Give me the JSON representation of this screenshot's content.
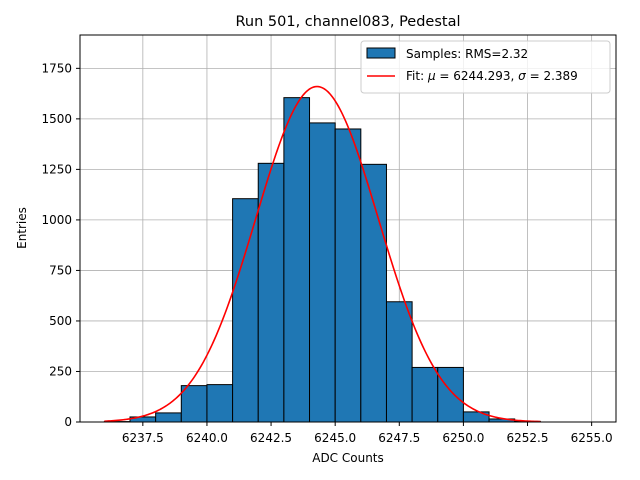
{
  "chart_data": {
    "type": "bar",
    "title": "Run 501, channel083, Pedestal",
    "xlabel": "ADC Counts",
    "ylabel": "Entries",
    "xlim": [
      6235.05,
      6255.95
    ],
    "ylim": [
      0,
      1915
    ],
    "grid": true,
    "legend_position": "top-right",
    "x_ticks": [
      6237.5,
      6240.0,
      6242.5,
      6245.0,
      6247.5,
      6250.0,
      6252.5,
      6255.0
    ],
    "x_tick_labels": [
      "6237.5",
      "6240.0",
      "6242.5",
      "6245.0",
      "6247.5",
      "6250.0",
      "6252.5",
      "6255.0"
    ],
    "y_ticks": [
      0,
      250,
      500,
      750,
      1000,
      1250,
      1500,
      1750
    ],
    "y_tick_labels": [
      "0",
      "250",
      "500",
      "750",
      "1000",
      "1250",
      "1500",
      "1750"
    ],
    "bin_edges": [
      6236,
      6237,
      6238,
      6239,
      6240,
      6241,
      6242,
      6243,
      6244,
      6245,
      6246,
      6247,
      6248,
      6249,
      6250,
      6251,
      6252,
      6253,
      6254,
      6255
    ],
    "series": [
      {
        "name": "Samples: RMS=2.32",
        "kind": "histogram",
        "color": "#1f77b4",
        "edge_color": "#000000",
        "values": [
          2,
          25,
          45,
          180,
          185,
          1105,
          1280,
          1605,
          1480,
          1450,
          1275,
          595,
          270,
          270,
          50,
          15,
          3,
          0,
          0
        ]
      },
      {
        "name_prefix": "Fit: ",
        "name_mu_symbol": "μ",
        "name_mu_value": " = 6244.293, ",
        "name_sigma_symbol": "σ",
        "name_sigma_value": " = 2.389",
        "kind": "gaussian_fit",
        "color": "#ff0000",
        "mu": 6244.293,
        "sigma": 2.389,
        "amplitude": 1660,
        "x_range": [
          6236,
          6253
        ]
      }
    ]
  }
}
